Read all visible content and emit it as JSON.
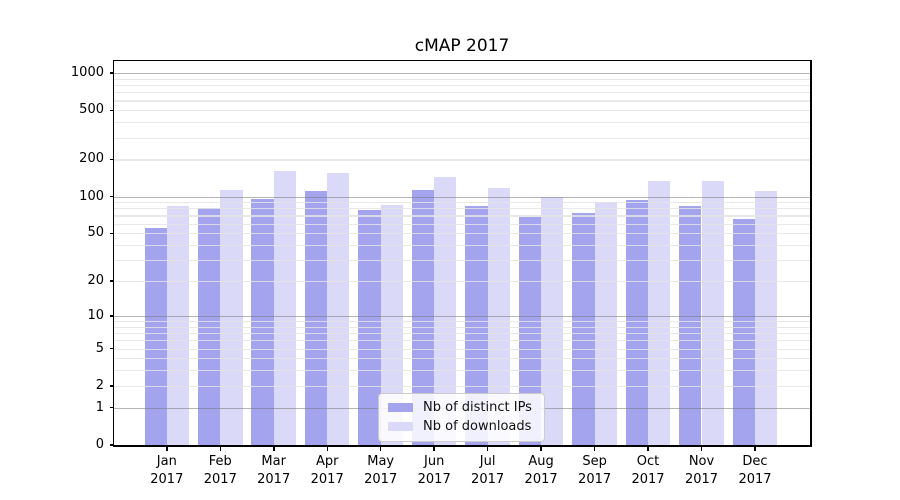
{
  "chart_data": {
    "type": "bar",
    "title": "cMAP 2017",
    "categories": [
      "Jan 2017",
      "Feb 2017",
      "Mar 2017",
      "Apr 2017",
      "May 2017",
      "Jun 2017",
      "Jul 2017",
      "Aug 2017",
      "Sep 2017",
      "Oct 2017",
      "Nov 2017",
      "Dec 2017"
    ],
    "series": [
      {
        "name": "Nb of distinct IPs",
        "color": "#a3a3ee",
        "values": [
          55,
          80,
          96,
          111,
          77,
          113,
          84,
          68,
          73,
          93,
          84,
          66
        ]
      },
      {
        "name": "Nb of downloads",
        "color": "#dadaf8",
        "values": [
          83,
          114,
          162,
          154,
          85,
          143,
          118,
          100,
          90,
          134,
          134,
          110
        ]
      }
    ],
    "xlabel": "",
    "ylabel": "",
    "yscale": "log1p",
    "yticks": [
      0,
      1,
      2,
      5,
      10,
      20,
      50,
      100,
      200,
      500,
      1000
    ],
    "ylim": [
      0,
      1250
    ],
    "grid": "on",
    "legend_position": "lower center"
  },
  "colors": {
    "background": "#ffffff",
    "spine": "#000000",
    "major_grid": "#787878",
    "minor_grid": "#e4e4e4"
  }
}
